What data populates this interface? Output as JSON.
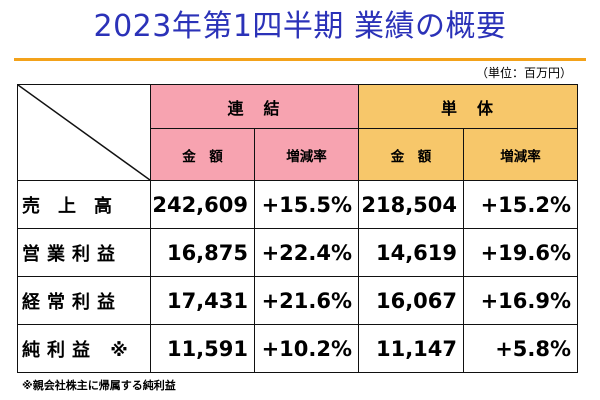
{
  "title": "2023年第1四半期 業績の概要",
  "unit": "（単位：百万円）",
  "groups": {
    "consolidated": "連　結",
    "standalone": "単　体"
  },
  "subheaders": {
    "amount": "金　額",
    "change": "増減率"
  },
  "rows": [
    {
      "label": "売　上　高",
      "cons_amount": "242,609",
      "cons_change": "+15.5%",
      "solo_amount": "218,504",
      "solo_change": "+15.2%"
    },
    {
      "label": "営業利益",
      "cons_amount": "16,875",
      "cons_change": "+22.4%",
      "solo_amount": "14,619",
      "solo_change": "+19.6%"
    },
    {
      "label": "経常利益",
      "cons_amount": "17,431",
      "cons_change": "+21.6%",
      "solo_amount": "16,067",
      "solo_change": "+16.9%"
    },
    {
      "label": "純利益 ※",
      "cons_amount": "11,591",
      "cons_change": "+10.2%",
      "solo_amount": "11,147",
      "solo_change": "+5.8%"
    }
  ],
  "footnote": "※親会社株主に帰属する純利益",
  "colors": {
    "title": "#2b32b8",
    "rule": "#f3a21a",
    "consolidated_header": "#f7a3b0",
    "standalone_header": "#f7c76a"
  }
}
